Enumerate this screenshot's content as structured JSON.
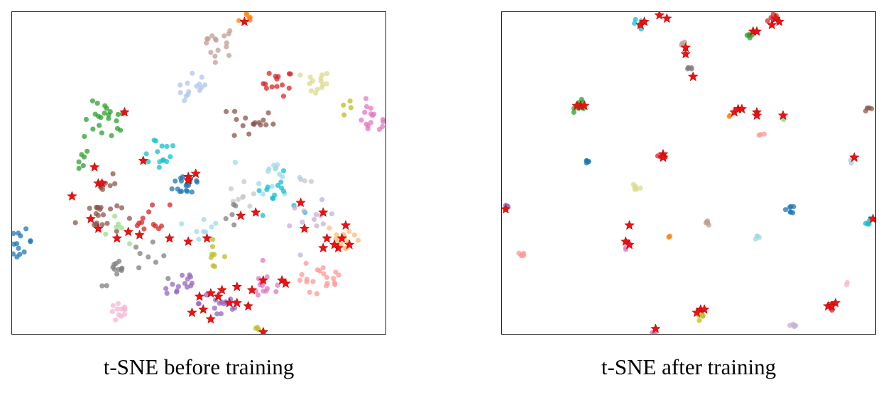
{
  "colors": {
    "blue": "#1f77b4",
    "orange": "#ff7f0e",
    "green": "#2ca02c",
    "red": "#d62728",
    "purple": "#9467bd",
    "brown": "#8c564b",
    "pink": "#e377c2",
    "gray": "#7f7f7f",
    "olive": "#bcbd22",
    "cyan": "#17becf",
    "lightblue": "#aec7e8",
    "lightorange": "#ffbb78",
    "lightgreen": "#98df8a",
    "salmon": "#ff9896",
    "lavender": "#c5b0d5",
    "tan": "#c49c94",
    "lightpink": "#f7b6d2",
    "silver": "#c7c7c7",
    "khaki": "#dbdb8d",
    "paleblue": "#9edae5",
    "star": "#ee1111"
  },
  "chart_data": [
    {
      "type": "scatter",
      "caption": "t-SNE before training",
      "xlim": [
        0,
        100
      ],
      "ylim": [
        0,
        100
      ],
      "grid": false,
      "axes_ticks": false,
      "clusters": [
        {
          "color": "orange",
          "x": 63,
          "y": 98,
          "n": 6,
          "spread": 1.2
        },
        {
          "color": "tan",
          "x": 55,
          "y": 91,
          "n": 16,
          "spread": 2.5
        },
        {
          "color": "lightblue",
          "x": 49,
          "y": 76,
          "n": 14,
          "spread": 2.5
        },
        {
          "color": "red",
          "x": 71,
          "y": 78,
          "n": 14,
          "spread": 2.0
        },
        {
          "color": "khaki",
          "x": 81,
          "y": 78,
          "n": 14,
          "spread": 2.0
        },
        {
          "color": "olive",
          "x": 90,
          "y": 70,
          "n": 4,
          "spread": 1.5
        },
        {
          "color": "pink",
          "x": 96,
          "y": 67,
          "n": 18,
          "spread": 2.5
        },
        {
          "color": "green",
          "x": 25,
          "y": 66,
          "n": 22,
          "spread": 3.0
        },
        {
          "color": "brown",
          "x": 64,
          "y": 66,
          "n": 16,
          "spread": 3.0
        },
        {
          "color": "green",
          "x": 17,
          "y": 54,
          "n": 6,
          "spread": 2.0
        },
        {
          "color": "cyan",
          "x": 39,
          "y": 57,
          "n": 14,
          "spread": 3.0
        },
        {
          "color": "blue",
          "x": 47,
          "y": 47,
          "n": 20,
          "spread": 2.0
        },
        {
          "color": "brown",
          "x": 24,
          "y": 47,
          "n": 8,
          "spread": 2.0
        },
        {
          "color": "paleblue",
          "x": 70,
          "y": 50,
          "n": 14,
          "spread": 3.0
        },
        {
          "color": "cyan",
          "x": 70,
          "y": 44,
          "n": 14,
          "spread": 3.0
        },
        {
          "color": "silver",
          "x": 62,
          "y": 43,
          "n": 8,
          "spread": 2.0
        },
        {
          "color": "silver",
          "x": 78,
          "y": 48,
          "n": 3,
          "spread": 1.0
        },
        {
          "color": "brown",
          "x": 23,
          "y": 37,
          "n": 20,
          "spread": 3.0
        },
        {
          "color": "red",
          "x": 37,
          "y": 36,
          "n": 12,
          "spread": 2.5
        },
        {
          "color": "paleblue",
          "x": 51,
          "y": 34,
          "n": 8,
          "spread": 2.0
        },
        {
          "color": "gray",
          "x": 60,
          "y": 37,
          "n": 5,
          "spread": 2.0
        },
        {
          "color": "lavender",
          "x": 80,
          "y": 35,
          "n": 12,
          "spread": 3.0
        },
        {
          "color": "lightorange",
          "x": 89,
          "y": 30,
          "n": 14,
          "spread": 2.5
        },
        {
          "color": "blue",
          "x": 2,
          "y": 29,
          "n": 14,
          "spread": 1.8
        },
        {
          "color": "lightgreen",
          "x": 29,
          "y": 32,
          "n": 7,
          "spread": 2.5
        },
        {
          "color": "olive",
          "x": 53,
          "y": 25,
          "n": 8,
          "spread": 2.0
        },
        {
          "color": "gray",
          "x": 36,
          "y": 24,
          "n": 8,
          "spread": 2.5
        },
        {
          "color": "gray",
          "x": 28,
          "y": 19,
          "n": 12,
          "spread": 2.0
        },
        {
          "color": "purple",
          "x": 45,
          "y": 16,
          "n": 14,
          "spread": 2.5
        },
        {
          "color": "purple",
          "x": 56,
          "y": 10,
          "n": 16,
          "spread": 3.0
        },
        {
          "color": "pink",
          "x": 68,
          "y": 15,
          "n": 14,
          "spread": 2.5
        },
        {
          "color": "salmon",
          "x": 79,
          "y": 17,
          "n": 10,
          "spread": 2.5
        },
        {
          "color": "salmon",
          "x": 84,
          "y": 17,
          "n": 10,
          "spread": 2.0
        },
        {
          "color": "lightpink",
          "x": 29,
          "y": 7,
          "n": 12,
          "spread": 1.5
        },
        {
          "color": "olive",
          "x": 65,
          "y": 2,
          "n": 3,
          "spread": 1.0
        }
      ],
      "stars": [
        [
          62,
          97
        ],
        [
          30,
          69
        ],
        [
          35,
          54
        ],
        [
          22,
          52
        ],
        [
          23,
          47
        ],
        [
          24,
          47
        ],
        [
          47,
          49
        ],
        [
          49,
          50
        ],
        [
          47,
          48
        ],
        [
          16,
          43
        ],
        [
          21,
          36
        ],
        [
          23,
          33
        ],
        [
          31,
          32
        ],
        [
          28,
          30
        ],
        [
          34,
          31
        ],
        [
          42,
          30
        ],
        [
          47,
          29
        ],
        [
          52,
          30
        ],
        [
          61,
          37
        ],
        [
          65,
          38
        ],
        [
          77,
          41
        ],
        [
          83,
          38
        ],
        [
          78,
          33
        ],
        [
          89,
          34
        ],
        [
          88,
          30
        ],
        [
          84,
          30
        ],
        [
          87,
          27
        ],
        [
          86,
          28
        ],
        [
          90,
          28
        ],
        [
          83,
          27
        ],
        [
          72,
          17
        ],
        [
          73,
          16
        ],
        [
          67,
          17
        ],
        [
          60,
          15
        ],
        [
          64,
          14
        ],
        [
          56,
          14
        ],
        [
          53,
          13
        ],
        [
          55,
          12
        ],
        [
          50,
          12
        ],
        [
          58,
          10
        ],
        [
          60,
          10
        ],
        [
          63,
          9
        ],
        [
          51,
          8
        ],
        [
          48,
          7
        ],
        [
          53,
          5
        ],
        [
          67,
          1
        ]
      ]
    },
    {
      "type": "scatter",
      "caption": "t-SNE after training",
      "xlim": [
        0,
        100
      ],
      "ylim": [
        0,
        100
      ],
      "grid": false,
      "axes_ticks": false,
      "clusters": [
        {
          "color": "cyan",
          "x": 36,
          "y": 96,
          "n": 6,
          "spread": 0.8
        },
        {
          "color": "red",
          "x": 73,
          "y": 98,
          "n": 6,
          "spread": 0.8
        },
        {
          "color": "green",
          "x": 66,
          "y": 93,
          "n": 5,
          "spread": 0.6
        },
        {
          "color": "tan",
          "x": 48,
          "y": 90,
          "n": 3,
          "spread": 0.5
        },
        {
          "color": "gray",
          "x": 50,
          "y": 82,
          "n": 5,
          "spread": 0.6
        },
        {
          "color": "green",
          "x": 21,
          "y": 71,
          "n": 10,
          "spread": 0.8
        },
        {
          "color": "orange",
          "x": 61,
          "y": 68,
          "n": 2,
          "spread": 0.4
        },
        {
          "color": "lightgreen",
          "x": 75,
          "y": 67,
          "n": 3,
          "spread": 0.5
        },
        {
          "color": "salmon",
          "x": 69,
          "y": 62,
          "n": 3,
          "spread": 0.4
        },
        {
          "color": "brown",
          "x": 98,
          "y": 70,
          "n": 4,
          "spread": 0.6
        },
        {
          "color": "blue",
          "x": 23,
          "y": 54,
          "n": 5,
          "spread": 0.4
        },
        {
          "color": "red",
          "x": 43,
          "y": 55,
          "n": 4,
          "spread": 0.5
        },
        {
          "color": "lightblue",
          "x": 93,
          "y": 54,
          "n": 3,
          "spread": 0.5
        },
        {
          "color": "khaki",
          "x": 36,
          "y": 46,
          "n": 6,
          "spread": 0.6
        },
        {
          "color": "purple",
          "x": 1,
          "y": 40,
          "n": 4,
          "spread": 0.5
        },
        {
          "color": "blue",
          "x": 77,
          "y": 39,
          "n": 7,
          "spread": 0.6
        },
        {
          "color": "cyan",
          "x": 98,
          "y": 35,
          "n": 5,
          "spread": 0.5
        },
        {
          "color": "tan",
          "x": 55,
          "y": 35,
          "n": 5,
          "spread": 0.5
        },
        {
          "color": "orange",
          "x": 45,
          "y": 31,
          "n": 2,
          "spread": 0.3
        },
        {
          "color": "paleblue",
          "x": 68,
          "y": 30,
          "n": 4,
          "spread": 0.5
        },
        {
          "color": "pink",
          "x": 34,
          "y": 28,
          "n": 6,
          "spread": 0.7
        },
        {
          "color": "salmon",
          "x": 5,
          "y": 25,
          "n": 6,
          "spread": 0.6
        },
        {
          "color": "lightpink",
          "x": 92,
          "y": 16,
          "n": 2,
          "spread": 0.3
        },
        {
          "color": "red",
          "x": 88,
          "y": 9,
          "n": 4,
          "spread": 0.5
        },
        {
          "color": "olive",
          "x": 53,
          "y": 7,
          "n": 6,
          "spread": 0.6
        },
        {
          "color": "lavender",
          "x": 78,
          "y": 3,
          "n": 5,
          "spread": 0.5
        },
        {
          "color": "pink",
          "x": 40,
          "y": 1,
          "n": 3,
          "spread": 0.4
        }
      ],
      "stars": [
        [
          37,
          96
        ],
        [
          38,
          97
        ],
        [
          42,
          99
        ],
        [
          44,
          98
        ],
        [
          73,
          98
        ],
        [
          74,
          97
        ],
        [
          72,
          96
        ],
        [
          67,
          94
        ],
        [
          68,
          94
        ],
        [
          49,
          89
        ],
        [
          49,
          87
        ],
        [
          51,
          80
        ],
        [
          21,
          71
        ],
        [
          22,
          71
        ],
        [
          20,
          71
        ],
        [
          62,
          69
        ],
        [
          63,
          70
        ],
        [
          64,
          70
        ],
        [
          68,
          69
        ],
        [
          68,
          68
        ],
        [
          75,
          68
        ],
        [
          43,
          56
        ],
        [
          43,
          55
        ],
        [
          94,
          55
        ],
        [
          1,
          39
        ],
        [
          99,
          36
        ],
        [
          34,
          34
        ],
        [
          33,
          29
        ],
        [
          34,
          28
        ],
        [
          53,
          8
        ],
        [
          54,
          8
        ],
        [
          52,
          7
        ],
        [
          87,
          9
        ],
        [
          89,
          10
        ],
        [
          88,
          9
        ],
        [
          41,
          2
        ]
      ]
    }
  ]
}
